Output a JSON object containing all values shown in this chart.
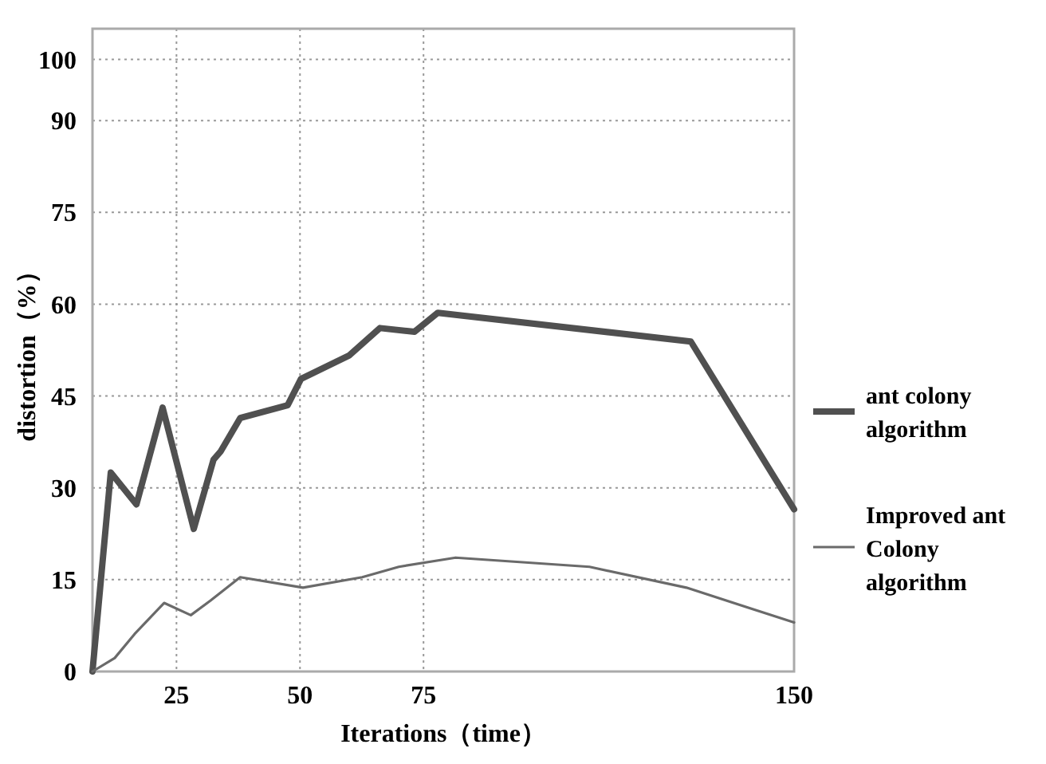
{
  "chart_data": {
    "type": "line",
    "xlabel": "Iterations（time）",
    "ylabel": "distortion（%）",
    "xlim": [
      8,
      150
    ],
    "xticks": [
      25,
      50,
      75,
      150
    ],
    "ylim": [
      0,
      105
    ],
    "yticks": [
      0,
      15,
      30,
      45,
      60,
      75,
      90,
      100
    ],
    "grid": true,
    "legend": "right",
    "marker": "none",
    "line_style": "solid",
    "series": [
      {
        "name": "ant colony algorithm",
        "color": "#505050",
        "x": [
          8,
          11.7,
          16.9,
          22.2,
          28.5,
          32.5,
          33.9,
          37.9,
          47.5,
          50.2,
          59.9,
          66.2,
          73.2,
          77.9,
          129.1,
          144.5,
          150
        ],
        "values": [
          0,
          32.5,
          27.3,
          43.1,
          23.3,
          34.6,
          35.9,
          41.4,
          43.5,
          47.8,
          51.6,
          56.1,
          55.5,
          58.6,
          53.9,
          33.7,
          26.5
        ]
      },
      {
        "name": "Improved ant Colony algorithm",
        "color": "#6a6a6a",
        "x": [
          8,
          12.5,
          16.5,
          22.5,
          27.9,
          31.9,
          37.9,
          50.6,
          62.6,
          70,
          81.5,
          108.6,
          128.2,
          150
        ],
        "values": [
          0,
          2.2,
          6.1,
          11.2,
          9.2,
          11.6,
          15.4,
          13.7,
          15.4,
          17.1,
          18.6,
          17.1,
          13.7,
          8.0
        ]
      }
    ]
  }
}
